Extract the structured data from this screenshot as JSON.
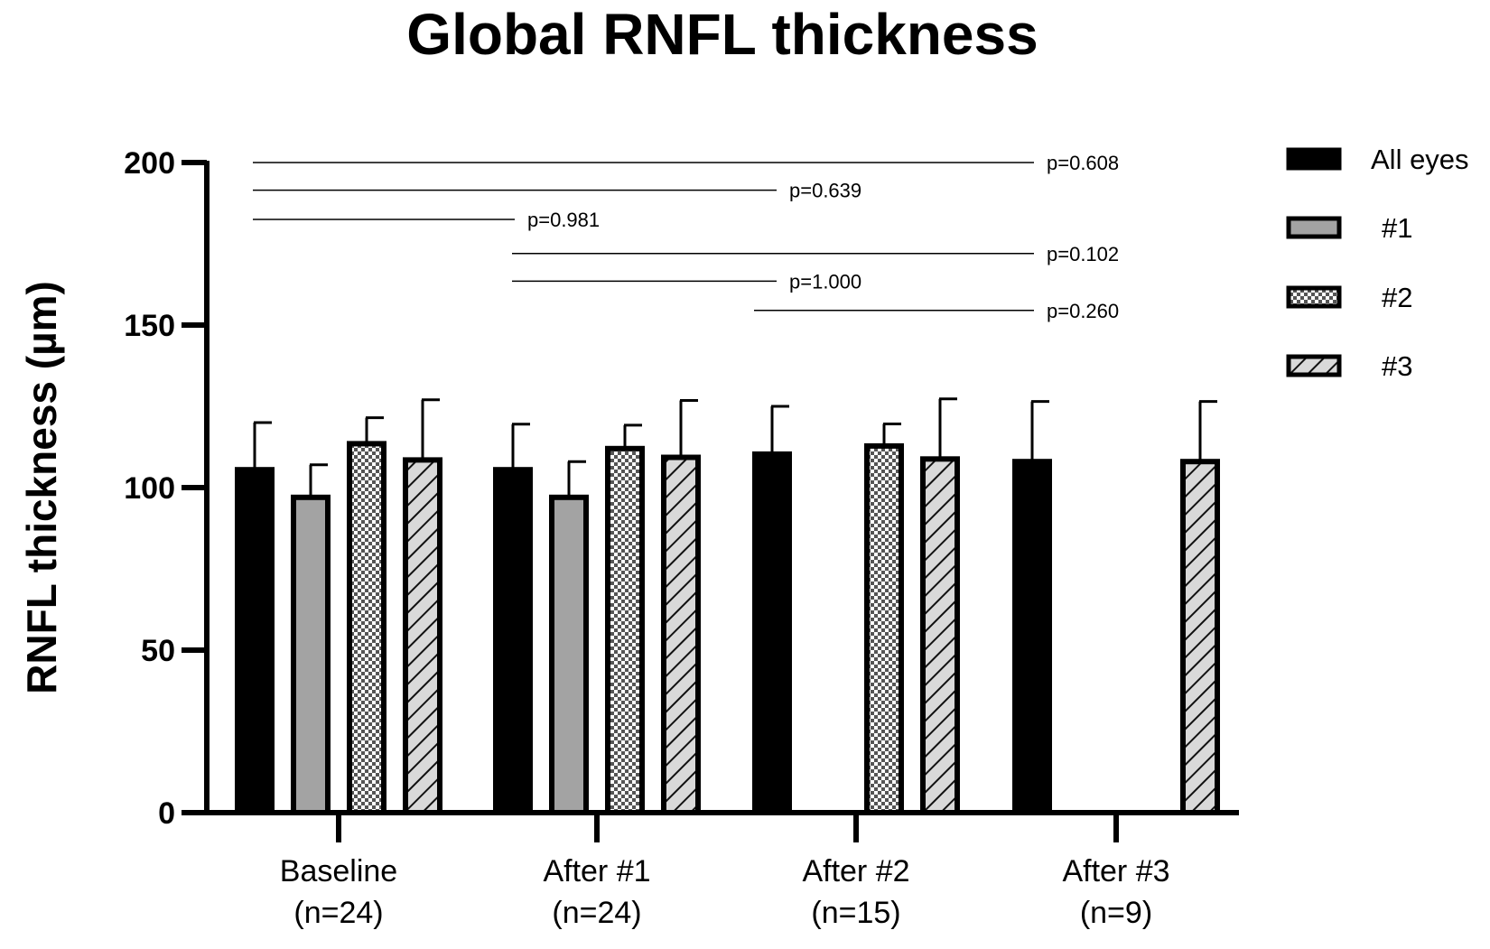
{
  "chart_data": {
    "type": "bar",
    "title": "Global RNFL thickness",
    "xlabel": "",
    "ylabel": "RNFL thickness (µm)",
    "ylim": [
      0,
      200
    ],
    "yticks": [
      0,
      50,
      100,
      150,
      200
    ],
    "categories": [
      {
        "line1": "Baseline",
        "line2": "(n=24)"
      },
      {
        "line1": "After #1",
        "line2": "(n=24)"
      },
      {
        "line1": "After #2",
        "line2": "(n=15)"
      },
      {
        "line1": "After #3",
        "line2": "(n=9)"
      }
    ],
    "series": [
      {
        "name": "All eyes",
        "pattern": "solid-black",
        "values": [
          105.5,
          105.5,
          110.3,
          108.0
        ],
        "errors": [
          14.5,
          14.0,
          14.7,
          18.5
        ]
      },
      {
        "name": "#1",
        "pattern": "gray",
        "values": [
          97.0,
          97.0,
          null,
          null
        ],
        "errors": [
          10.0,
          11.0,
          null,
          null
        ]
      },
      {
        "name": "#2",
        "pattern": "checker",
        "values": [
          113.5,
          112.0,
          112.8,
          null
        ],
        "errors": [
          8.0,
          7.2,
          6.8,
          null
        ]
      },
      {
        "name": "#3",
        "pattern": "hatch",
        "values": [
          108.5,
          109.3,
          108.8,
          108.0
        ],
        "errors": [
          18.5,
          17.5,
          18.5,
          18.5
        ]
      }
    ],
    "comparisons": [
      {
        "from": "Baseline",
        "to": "After #3",
        "label": "p=0.608",
        "y": 200
      },
      {
        "from": "Baseline",
        "to": "After #2",
        "label": "p=0.639",
        "y": 191.5
      },
      {
        "from": "Baseline",
        "to": "After #1",
        "label": "p=0.981",
        "y": 182.5
      },
      {
        "from": "After #1",
        "to": "After #3",
        "label": "p=0.102",
        "y": 172
      },
      {
        "from": "After #1",
        "to": "After #2",
        "label": "p=1.000",
        "y": 163.5
      },
      {
        "from": "After #2",
        "to": "After #3",
        "label": "p=0.260",
        "y": 154.5
      }
    ],
    "legend": {
      "position": "top-right",
      "entries": [
        "All eyes",
        "#1",
        "#2",
        "#3"
      ]
    }
  }
}
